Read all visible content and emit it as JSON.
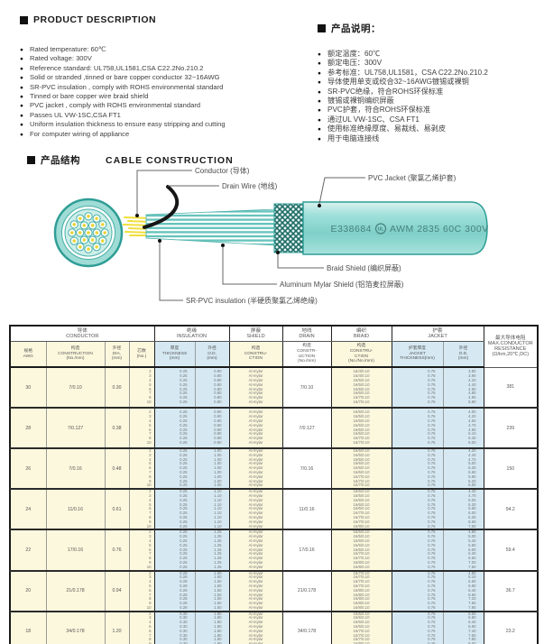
{
  "colors": {
    "accent_teal": "#2f9e96",
    "jacket_fill": "#8ed8d1",
    "conductor_yellow": "#f0df3c",
    "table_yellow": "#fcf8dd",
    "table_blue": "#d6e9f3"
  },
  "product_description": {
    "title_en": "PRODUCT DESCRIPTION",
    "items_en": [
      "Rated temperature: 60℃",
      "Rated voltage: 300V",
      "Reference standard: UL758,UL1581,CSA C22.2No.210.2",
      "Solid or stranded ,tinned or bare copper conductor 32~16AWG",
      "SR-PVC insulation , comply with ROHS environmental standard",
      "Tinned or bare copper wire braid shield",
      "PVC jacket , comply with ROHS environmental standard",
      "Passes UL VW-1SC,CSA FT1",
      "Uniform insulation thickness to ensure easy stripping and cutting",
      "For computer wiring of appliance"
    ],
    "title_zh": "产品说明：",
    "items_zh": [
      "额定温度：60℃",
      "额定电压：300V",
      "参考标准：UL758,UL1581，CSA C22.2No.210.2",
      "导体使用单支或绞合32~16AWG镀锡或裸铜",
      "SR-PVC绝缘，符合ROHS环保标准",
      "镀锡或裸铜编织屏蔽",
      "PVC护套，符合ROHS环保标准",
      "通过UL VW-1SC、CSA FT1",
      "使用标准绝缘厚度、易裁线、易剥皮",
      "用于电脑连接线"
    ]
  },
  "construction": {
    "title_zh": "产品结构",
    "title_en": "CABLE CONSTRUCTION",
    "labels": {
      "conductor": "Conductor (导体)",
      "drain_wire": "Drain Wire (地线)",
      "pvc_jacket": "PVC Jacket (聚氯乙烯护套)",
      "braid_shield": "Braid Shield (编织屏蔽)",
      "aluminum_mylar_shield": "Aluminum Mylar Shield (铝箔麦拉屏蔽)",
      "sr_pvc_insulation": "SR-PVC insulation (半硬质聚氯乙烯绝缘)"
    },
    "jacket_print": {
      "cert": "E338684",
      "ul_mark": "UL",
      "spec": "AWM 2835 60C 300V"
    }
  },
  "table": {
    "groups": [
      {
        "zh": "导体",
        "en": "CONDUCTOR",
        "span": 4
      },
      {
        "zh": "绝缘",
        "en": "INSULATION",
        "span": 2
      },
      {
        "zh": "屏蔽",
        "en": "SHIELD",
        "span": 1
      },
      {
        "zh": "地线",
        "en": "DRAIN",
        "span": 1
      },
      {
        "zh": "编织",
        "en": "BRAID",
        "span": 1
      },
      {
        "zh": "护套",
        "en": "JACKET",
        "span": 2
      }
    ],
    "resistance_header_lines": [
      "最大导体电阻",
      "MAX.CONDUCTOR",
      "RESISTANCE",
      "(Ω/km,20℃,DC)"
    ],
    "columns": [
      {
        "lines": [
          "规格",
          "AWG"
        ],
        "bg": "y",
        "sec": false
      },
      {
        "lines": [
          "构造",
          "CONSTRUCTION",
          "(No./mm)"
        ],
        "bg": "y",
        "sec": false
      },
      {
        "lines": [
          "外径",
          "DIA.",
          "(mm)"
        ],
        "bg": "y",
        "sec": false
      },
      {
        "lines": [
          "芯数",
          "(No.)"
        ],
        "bg": "y",
        "sec": true
      },
      {
        "lines": [
          "厚度",
          "THICKNESS",
          "(mm)"
        ],
        "bg": "b",
        "sec": false
      },
      {
        "lines": [
          "外径",
          "O.D.",
          "(mm)"
        ],
        "bg": "b",
        "sec": true
      },
      {
        "lines": [
          "构造",
          "CONSTRU-",
          "CTION"
        ],
        "bg": "y",
        "sec": true
      },
      {
        "lines": [
          "构造",
          "CONSTR-",
          "UCTION",
          "(No./mm)"
        ],
        "bg": "w",
        "sec": true
      },
      {
        "lines": [
          "构造",
          "CONSTRU-",
          "CTION",
          "(No./No./mm)"
        ],
        "bg": "y",
        "sec": true
      },
      {
        "lines": [
          "护套厚度",
          "JACKET",
          "THICKNESS(mm)"
        ],
        "bg": "b",
        "sec": false
      },
      {
        "lines": [
          "外径",
          "O.D.",
          "(mm)"
        ],
        "bg": "b",
        "sec": true
      }
    ],
    "rows": [
      {
        "awg": "30",
        "construction": "7/0.10",
        "dia": "0.30",
        "cores": [
          "2",
          "3",
          "4",
          "5",
          "6",
          "7",
          "8",
          "10"
        ],
        "ins_thickness": "0.25",
        "ins_od": "0.80",
        "shield": "Al-mylar",
        "drain": "7/0.10",
        "braid": [
          "16/4/0.10",
          "16/4/0.10",
          "16/5/0.10",
          "16/5/0.10",
          "16/6/0.10",
          "16/6/0.10",
          "16/7/0.10",
          "16/7/0.10"
        ],
        "jacket_thickness": "0.76",
        "jacket_od": [
          "3.80",
          "3.90",
          "4.20",
          "4.40",
          "4.60",
          "4.80",
          "4.90",
          "5.80"
        ],
        "resistance": "381"
      },
      {
        "awg": "28",
        "construction": "7/0.127",
        "dia": "0.38",
        "cores": [
          "2",
          "3",
          "4",
          "5",
          "6",
          "7",
          "8",
          "10"
        ],
        "ins_thickness": "0.25",
        "ins_od": "0.90",
        "shield": "Al-mylar",
        "drain": "7/0.127",
        "braid": [
          "16/5/0.10",
          "16/5/0.10",
          "16/5/0.10",
          "16/6/0.10",
          "16/6/0.10",
          "16/6/0.10",
          "16/7/0.10",
          "16/7/0.10"
        ],
        "jacket_thickness": "0.76",
        "jacket_od": [
          "4.00",
          "4.20",
          "4.50",
          "4.70",
          "4.90",
          "5.10",
          "5.40",
          "6.00"
        ],
        "resistance": "239"
      },
      {
        "awg": "26",
        "construction": "7/0.16",
        "dia": "0.48",
        "cores": [
          "2",
          "3",
          "4",
          "5",
          "6",
          "7",
          "8",
          "9",
          "10"
        ],
        "ins_thickness": "0.25",
        "ins_od": "1.00",
        "shield": "Al-mylar",
        "drain": "7/0.16",
        "braid": [
          "16/5/0.10",
          "16/5/0.10",
          "16/5/0.10",
          "16/6/0.10",
          "16/6/0.10",
          "16/6/0.10",
          "16/7/0.10",
          "16/7/0.10",
          "16/7/0.10"
        ],
        "jacket_thickness": "0.76",
        "jacket_od": [
          "4.20",
          "4.40",
          "4.70",
          "5.00",
          "5.30",
          "5.60",
          "5.90",
          "6.20",
          "6.50"
        ],
        "resistance": "150"
      },
      {
        "awg": "24",
        "construction": "11/0.16",
        "dia": "0.61",
        "cores": [
          "2",
          "3",
          "4",
          "5",
          "6",
          "7",
          "8",
          "9",
          "10"
        ],
        "ins_thickness": "0.25",
        "ins_od": "1.10",
        "shield": "Al-mylar",
        "drain": "11/0.16",
        "braid": [
          "16/5/0.10",
          "16/5/0.10",
          "16/6/0.10",
          "16/6/0.10",
          "16/6/0.10",
          "16/7/0.10",
          "16/7/0.10",
          "16/7/0.10",
          "16/8/0.10"
        ],
        "jacket_thickness": "0.76",
        "jacket_od": [
          "4.40",
          "4.70",
          "5.00",
          "5.30",
          "5.60",
          "6.00",
          "6.30",
          "6.60",
          "7.00"
        ],
        "resistance": "94.2"
      },
      {
        "awg": "22",
        "construction": "17/0.16",
        "dia": "0.76",
        "cores": [
          "2",
          "3",
          "4",
          "5",
          "6",
          "7",
          "8",
          "9",
          "10"
        ],
        "ins_thickness": "0.25",
        "ins_od": "1.25",
        "shield": "Al-mylar",
        "drain": "17/0.16",
        "braid": [
          "16/5/0.10",
          "16/5/0.10",
          "16/6/0.10",
          "16/6/0.10",
          "16/6/0.10",
          "16/7/0.10",
          "16/7/0.10",
          "16/8/0.10",
          "16/8/0.10"
        ],
        "jacket_thickness": "0.76",
        "jacket_od": [
          "4.80",
          "5.00",
          "5.40",
          "5.80",
          "6.00",
          "6.30",
          "6.60",
          "7.00",
          "7.50"
        ],
        "resistance": "59.4"
      },
      {
        "awg": "20",
        "construction": "21/0.178",
        "dia": "0.94",
        "cores": [
          "2",
          "3",
          "4",
          "5",
          "6",
          "7",
          "8",
          "9",
          "10"
        ],
        "ins_thickness": "0.28",
        "ins_od": "1.50",
        "shield": "Al-mylar",
        "drain": "21/0.178",
        "braid": [
          "16/7/0.10",
          "16/7/0.10",
          "16/7/0.10",
          "16/7/0.10",
          "16/8/0.10",
          "16/8/0.10",
          "16/8/0.10",
          "16/8/0.10",
          "16/8/0.10"
        ],
        "jacket_thickness": "0.76",
        "jacket_od": [
          "4.80",
          "5.10",
          "5.50",
          "5.90",
          "6.40",
          "6.80",
          "7.20",
          "7.50",
          "7.90"
        ],
        "resistance": "36.7"
      },
      {
        "awg": "18",
        "construction": "34/0.178",
        "dia": "1.20",
        "cores": [
          "2",
          "3",
          "4",
          "5",
          "6",
          "7",
          "8",
          "9",
          "10"
        ],
        "ins_thickness": "0.30",
        "ins_od": "1.80",
        "shield": "Al-mylar",
        "drain": "34/0.178",
        "braid": [
          "16/6/0.10",
          "16/6/0.10",
          "16/6/0.10",
          "16/6/0.10",
          "16/7/0.10",
          "16/7/0.10",
          "16/7/0.10",
          "16/8/0.10",
          "16/8/0.10"
        ],
        "jacket_thickness": "0.76",
        "jacket_od": [
          "5.50",
          "5.80",
          "6.40",
          "6.90",
          "7.40",
          "7.60",
          "7.80",
          "8.00",
          "8.20"
        ],
        "resistance": "23.2"
      }
    ]
  }
}
